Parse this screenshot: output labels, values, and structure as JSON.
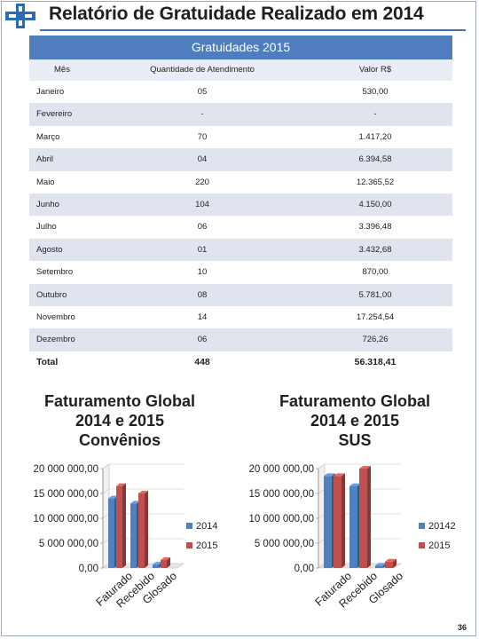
{
  "title": "Relatório de Gratuidade Realizado em 2014",
  "table": {
    "caption": "Gratuidades 2015",
    "columns": [
      "Mês",
      "Quantidade de Atendimento",
      "Valor R$"
    ],
    "rows": [
      [
        "Janeiro",
        "05",
        "530,00"
      ],
      [
        "Fevereiro",
        "-",
        "-"
      ],
      [
        "Março",
        "70",
        "1.417,20"
      ],
      [
        "Abril",
        "04",
        "6.394,58"
      ],
      [
        "Maio",
        "220",
        "12.365,52"
      ],
      [
        "Junho",
        "104",
        "4.150,00"
      ],
      [
        "Julho",
        "06",
        "3.396,48"
      ],
      [
        "Agosto",
        "01",
        "3.432,68"
      ],
      [
        "Setembro",
        "10",
        "870,00"
      ],
      [
        "Outubro",
        "08",
        "5.781,00"
      ],
      [
        "Novembro",
        "14",
        "17.254,54"
      ],
      [
        "Dezembro",
        "06",
        "726,26"
      ]
    ],
    "total": [
      "Total",
      "448",
      "56.318,41"
    ]
  },
  "chart_data": [
    {
      "type": "bar",
      "title": "Faturamento Global 2014 e 2015 Convênios",
      "categories": [
        "Faturado",
        "Recebido",
        "Glosado"
      ],
      "series": [
        {
          "name": "2014",
          "values": [
            14000000,
            13000000,
            700000
          ],
          "color": "#4f81bd"
        },
        {
          "name": "2015",
          "values": [
            16500000,
            15000000,
            1600000
          ],
          "color": "#c0504d"
        }
      ],
      "ylim": [
        0,
        20000000
      ],
      "yticks": [
        "0,00",
        "5 000 000,00",
        "10 000 000,00",
        "15 000 000,00",
        "20 000 000,00"
      ],
      "legend": "right"
    },
    {
      "type": "bar",
      "title": "Faturamento Global 2014 e 2015 SUS",
      "categories": [
        "Faturado",
        "Recebido",
        "Glosado"
      ],
      "series": [
        {
          "name": "20142",
          "values": [
            18500000,
            16500000,
            500000
          ],
          "color": "#4f81bd"
        },
        {
          "name": "2015",
          "values": [
            18500000,
            20000000,
            1300000
          ],
          "color": "#c0504d"
        }
      ],
      "ylim": [
        0,
        20000000
      ],
      "yticks": [
        "0,00",
        "5 000 000,00",
        "10 000 000,00",
        "15 000 000,00",
        "20 000 000,00"
      ],
      "legend": "right"
    }
  ],
  "chart_titles": [
    [
      "Faturamento Global",
      "2014 e 2015",
      "Convênios"
    ],
    [
      "Faturamento Global",
      "2014 e 2015",
      "SUS"
    ]
  ],
  "page_number": "36",
  "colors": {
    "header_blue": "#4f7dbd",
    "bar_2014": "#4f81bd",
    "bar_2015": "#c0504d"
  }
}
